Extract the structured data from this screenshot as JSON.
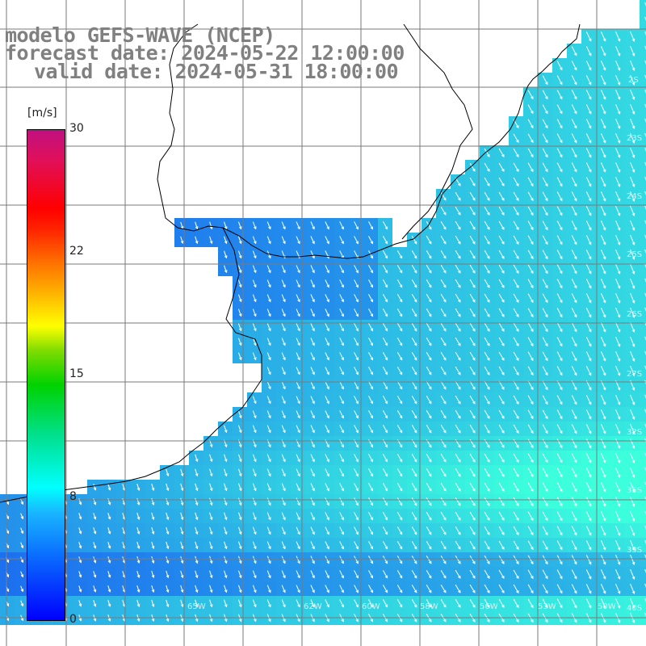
{
  "title": {
    "line1": "modelo GEFS-WAVE (NCEP)",
    "line2": "forecast date: 2024-05-22 12:00:00",
    "line3": "valid date: 2024-05-31 18:00:00"
  },
  "colorbar": {
    "unit": "[m/s]",
    "ticks": [
      "30",
      "22",
      "15",
      "8",
      "0"
    ],
    "min": 0,
    "max": 30,
    "colors": {
      "ocean_low": "#1a5cf0",
      "ocean_mid": "#18a6f2",
      "ocean_high": "#28e6d8",
      "land": "#ffffff",
      "coastline": "#000000",
      "grid": "#808080"
    }
  },
  "latitude_labels": [
    "2S",
    "23S",
    "24S",
    "25S",
    "26S",
    "27S",
    "32S",
    "35S",
    "39S",
    "40S",
    "41S"
  ],
  "longitude_labels": [
    "65W",
    "62W",
    "60W",
    "58W",
    "56W",
    "53W",
    "50W",
    "49W"
  ],
  "wind_field": {
    "description_direction": "north-northwest to south-southeast flow",
    "speed_range_ms": [
      2,
      8
    ]
  }
}
